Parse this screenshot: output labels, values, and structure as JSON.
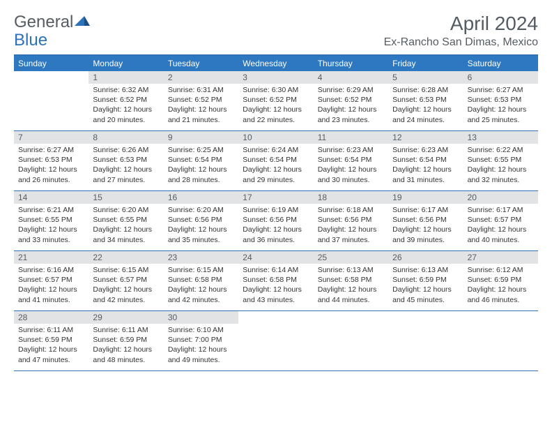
{
  "brand": {
    "part1": "General",
    "part2": "Blue"
  },
  "header": {
    "month": "April 2024",
    "location": "Ex-Rancho San Dimas, Mexico"
  },
  "weekdays": [
    "Sunday",
    "Monday",
    "Tuesday",
    "Wednesday",
    "Thursday",
    "Friday",
    "Saturday"
  ],
  "colors": {
    "accent": "#2d72b8",
    "header_bg": "#2d78c0",
    "daynum_bg": "#e2e3e5",
    "text": "#555c63"
  },
  "calendar": {
    "type": "table",
    "rows": 5,
    "cols": 7,
    "first_weekday_index": 1,
    "days": [
      {
        "n": "1",
        "sunrise": "6:32 AM",
        "sunset": "6:52 PM",
        "daylight": "12 hours and 20 minutes."
      },
      {
        "n": "2",
        "sunrise": "6:31 AM",
        "sunset": "6:52 PM",
        "daylight": "12 hours and 21 minutes."
      },
      {
        "n": "3",
        "sunrise": "6:30 AM",
        "sunset": "6:52 PM",
        "daylight": "12 hours and 22 minutes."
      },
      {
        "n": "4",
        "sunrise": "6:29 AM",
        "sunset": "6:52 PM",
        "daylight": "12 hours and 23 minutes."
      },
      {
        "n": "5",
        "sunrise": "6:28 AM",
        "sunset": "6:53 PM",
        "daylight": "12 hours and 24 minutes."
      },
      {
        "n": "6",
        "sunrise": "6:27 AM",
        "sunset": "6:53 PM",
        "daylight": "12 hours and 25 minutes."
      },
      {
        "n": "7",
        "sunrise": "6:27 AM",
        "sunset": "6:53 PM",
        "daylight": "12 hours and 26 minutes."
      },
      {
        "n": "8",
        "sunrise": "6:26 AM",
        "sunset": "6:53 PM",
        "daylight": "12 hours and 27 minutes."
      },
      {
        "n": "9",
        "sunrise": "6:25 AM",
        "sunset": "6:54 PM",
        "daylight": "12 hours and 28 minutes."
      },
      {
        "n": "10",
        "sunrise": "6:24 AM",
        "sunset": "6:54 PM",
        "daylight": "12 hours and 29 minutes."
      },
      {
        "n": "11",
        "sunrise": "6:23 AM",
        "sunset": "6:54 PM",
        "daylight": "12 hours and 30 minutes."
      },
      {
        "n": "12",
        "sunrise": "6:23 AM",
        "sunset": "6:54 PM",
        "daylight": "12 hours and 31 minutes."
      },
      {
        "n": "13",
        "sunrise": "6:22 AM",
        "sunset": "6:55 PM",
        "daylight": "12 hours and 32 minutes."
      },
      {
        "n": "14",
        "sunrise": "6:21 AM",
        "sunset": "6:55 PM",
        "daylight": "12 hours and 33 minutes."
      },
      {
        "n": "15",
        "sunrise": "6:20 AM",
        "sunset": "6:55 PM",
        "daylight": "12 hours and 34 minutes."
      },
      {
        "n": "16",
        "sunrise": "6:20 AM",
        "sunset": "6:56 PM",
        "daylight": "12 hours and 35 minutes."
      },
      {
        "n": "17",
        "sunrise": "6:19 AM",
        "sunset": "6:56 PM",
        "daylight": "12 hours and 36 minutes."
      },
      {
        "n": "18",
        "sunrise": "6:18 AM",
        "sunset": "6:56 PM",
        "daylight": "12 hours and 37 minutes."
      },
      {
        "n": "19",
        "sunrise": "6:17 AM",
        "sunset": "6:56 PM",
        "daylight": "12 hours and 39 minutes."
      },
      {
        "n": "20",
        "sunrise": "6:17 AM",
        "sunset": "6:57 PM",
        "daylight": "12 hours and 40 minutes."
      },
      {
        "n": "21",
        "sunrise": "6:16 AM",
        "sunset": "6:57 PM",
        "daylight": "12 hours and 41 minutes."
      },
      {
        "n": "22",
        "sunrise": "6:15 AM",
        "sunset": "6:57 PM",
        "daylight": "12 hours and 42 minutes."
      },
      {
        "n": "23",
        "sunrise": "6:15 AM",
        "sunset": "6:58 PM",
        "daylight": "12 hours and 42 minutes."
      },
      {
        "n": "24",
        "sunrise": "6:14 AM",
        "sunset": "6:58 PM",
        "daylight": "12 hours and 43 minutes."
      },
      {
        "n": "25",
        "sunrise": "6:13 AM",
        "sunset": "6:58 PM",
        "daylight": "12 hours and 44 minutes."
      },
      {
        "n": "26",
        "sunrise": "6:13 AM",
        "sunset": "6:59 PM",
        "daylight": "12 hours and 45 minutes."
      },
      {
        "n": "27",
        "sunrise": "6:12 AM",
        "sunset": "6:59 PM",
        "daylight": "12 hours and 46 minutes."
      },
      {
        "n": "28",
        "sunrise": "6:11 AM",
        "sunset": "6:59 PM",
        "daylight": "12 hours and 47 minutes."
      },
      {
        "n": "29",
        "sunrise": "6:11 AM",
        "sunset": "6:59 PM",
        "daylight": "12 hours and 48 minutes."
      },
      {
        "n": "30",
        "sunrise": "6:10 AM",
        "sunset": "7:00 PM",
        "daylight": "12 hours and 49 minutes."
      }
    ]
  },
  "labels": {
    "sunrise_prefix": "Sunrise: ",
    "sunset_prefix": "Sunset: ",
    "daylight_prefix": "Daylight: "
  }
}
